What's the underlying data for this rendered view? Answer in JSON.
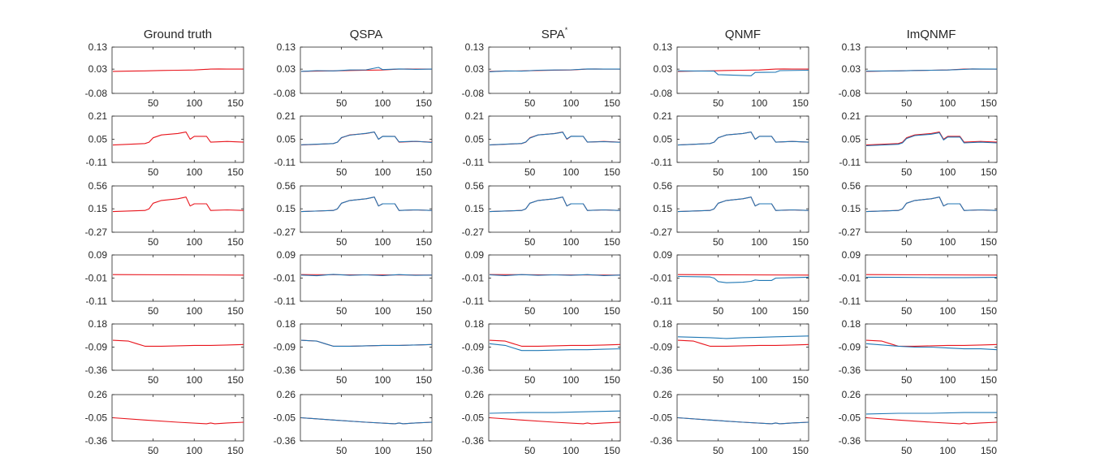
{
  "colors": {
    "truth": "#e8141c",
    "estimate": "#1f77b4"
  },
  "chart_data": {
    "type": "line",
    "title": "",
    "xlim": [
      0,
      160
    ],
    "xticks": [
      50,
      100,
      150
    ],
    "columns": [
      {
        "key": "gt",
        "title": "Ground truth",
        "sup": ""
      },
      {
        "key": "qspa",
        "title": "QSPA",
        "sup": ""
      },
      {
        "key": "spa",
        "title": "SPA",
        "sup": "*"
      },
      {
        "key": "qnmf",
        "title": "QNMF",
        "sup": ""
      },
      {
        "key": "imq",
        "title": "ImQNMF",
        "sup": ""
      }
    ],
    "rows": [
      {
        "ylim": [
          -0.08,
          0.13
        ],
        "yticks": [
          0.13,
          0.03,
          -0.08
        ],
        "ytick_labels": [
          "0.13",
          "0.03",
          "-0.08"
        ],
        "truth": {
          "x": [
            1,
            20,
            40,
            60,
            80,
            100,
            120,
            130,
            140,
            160
          ],
          "y": [
            0.02,
            0.021,
            0.022,
            0.024,
            0.025,
            0.026,
            0.03,
            0.031,
            0.03,
            0.03
          ]
        },
        "estimates": {
          "qspa": {
            "x": [
              1,
              20,
              40,
              60,
              80,
              95,
              100,
              120,
              140,
              160
            ],
            "y": [
              0.02,
              0.023,
              0.022,
              0.026,
              0.027,
              0.038,
              0.028,
              0.031,
              0.029,
              0.03
            ]
          },
          "spa": {
            "x": [
              1,
              20,
              40,
              60,
              80,
              100,
              120,
              140,
              160
            ],
            "y": [
              0.018,
              0.022,
              0.021,
              0.025,
              0.026,
              0.027,
              0.031,
              0.03,
              0.03
            ]
          },
          "qnmf": {
            "x": [
              1,
              45,
              50,
              90,
              95,
              120,
              125,
              160
            ],
            "y": [
              0.022,
              0.021,
              0.005,
              0.0,
              0.015,
              0.016,
              0.023,
              0.025
            ]
          },
          "imq": {
            "x": [
              1,
              40,
              60,
              80,
              100,
              120,
              130,
              160
            ],
            "y": [
              0.021,
              0.022,
              0.024,
              0.025,
              0.026,
              0.029,
              0.031,
              0.03
            ]
          }
        }
      },
      {
        "ylim": [
          -0.11,
          0.21
        ],
        "yticks": [
          0.21,
          0.05,
          -0.11
        ],
        "ytick_labels": [
          "0.21",
          "0.05",
          "-0.11"
        ],
        "truth": {
          "x": [
            1,
            40,
            45,
            50,
            60,
            80,
            90,
            95,
            100,
            115,
            120,
            140,
            160
          ],
          "y": [
            0.01,
            0.02,
            0.03,
            0.06,
            0.08,
            0.09,
            0.1,
            0.05,
            0.07,
            0.07,
            0.03,
            0.035,
            0.03
          ]
        },
        "estimates": {
          "qspa": {
            "x": [
              1,
              40,
              45,
              50,
              60,
              80,
              90,
              95,
              100,
              115,
              120,
              140,
              160
            ],
            "y": [
              0.012,
              0.02,
              0.03,
              0.062,
              0.078,
              0.091,
              0.1,
              0.05,
              0.07,
              0.069,
              0.032,
              0.036,
              0.028
            ]
          },
          "spa": {
            "x": [
              1,
              40,
              45,
              50,
              60,
              80,
              90,
              95,
              100,
              115,
              120,
              140,
              160
            ],
            "y": [
              0.011,
              0.021,
              0.031,
              0.058,
              0.08,
              0.089,
              0.099,
              0.052,
              0.071,
              0.07,
              0.031,
              0.033,
              0.029
            ]
          },
          "qnmf": {
            "x": [
              1,
              40,
              45,
              50,
              60,
              80,
              90,
              95,
              100,
              115,
              120,
              140,
              160
            ],
            "y": [
              0.01,
              0.02,
              0.03,
              0.06,
              0.08,
              0.09,
              0.1,
              0.05,
              0.07,
              0.07,
              0.03,
              0.035,
              0.03
            ]
          },
          "imq": {
            "x": [
              1,
              40,
              45,
              50,
              60,
              80,
              90,
              95,
              100,
              115,
              120,
              140,
              160
            ],
            "y": [
              0.005,
              0.015,
              0.025,
              0.055,
              0.075,
              0.085,
              0.095,
              0.045,
              0.065,
              0.065,
              0.025,
              0.03,
              0.025
            ]
          }
        }
      },
      {
        "ylim": [
          -0.27,
          0.56
        ],
        "yticks": [
          0.56,
          0.15,
          -0.27
        ],
        "ytick_labels": [
          "0.56",
          "0.15",
          "-0.27"
        ],
        "truth": {
          "x": [
            1,
            40,
            45,
            50,
            60,
            80,
            90,
            95,
            100,
            115,
            120,
            140,
            160
          ],
          "y": [
            0.1,
            0.12,
            0.15,
            0.25,
            0.3,
            0.33,
            0.36,
            0.2,
            0.24,
            0.24,
            0.12,
            0.13,
            0.12
          ]
        },
        "estimates": {
          "qspa": {
            "x": [
              1,
              40,
              45,
              50,
              60,
              80,
              90,
              95,
              100,
              115,
              120,
              140,
              160
            ],
            "y": [
              0.1,
              0.12,
              0.15,
              0.25,
              0.3,
              0.33,
              0.36,
              0.2,
              0.24,
              0.24,
              0.12,
              0.13,
              0.12
            ]
          },
          "spa": {
            "x": [
              1,
              40,
              45,
              50,
              60,
              80,
              90,
              95,
              100,
              115,
              120,
              140,
              160
            ],
            "y": [
              0.1,
              0.12,
              0.15,
              0.25,
              0.3,
              0.33,
              0.36,
              0.2,
              0.24,
              0.24,
              0.12,
              0.13,
              0.12
            ]
          },
          "qnmf": {
            "x": [
              1,
              40,
              45,
              50,
              60,
              80,
              90,
              95,
              100,
              115,
              120,
              140,
              160
            ],
            "y": [
              0.1,
              0.12,
              0.15,
              0.25,
              0.3,
              0.33,
              0.36,
              0.2,
              0.24,
              0.24,
              0.12,
              0.13,
              0.12
            ]
          },
          "imq": {
            "x": [
              1,
              40,
              45,
              50,
              60,
              80,
              90,
              95,
              100,
              115,
              120,
              140,
              160
            ],
            "y": [
              0.1,
              0.12,
              0.15,
              0.25,
              0.3,
              0.33,
              0.36,
              0.2,
              0.24,
              0.24,
              0.12,
              0.13,
              0.12
            ]
          }
        }
      },
      {
        "ylim": [
          -0.11,
          0.09
        ],
        "yticks": [
          0.09,
          -0.01,
          -0.11
        ],
        "ytick_labels": [
          "0.09",
          "-0.01",
          "-0.11"
        ],
        "truth": {
          "x": [
            1,
            80,
            160
          ],
          "y": [
            0.005,
            0.004,
            0.003
          ]
        },
        "estimates": {
          "qspa": {
            "x": [
              1,
              20,
              40,
              60,
              80,
              100,
              120,
              140,
              160
            ],
            "y": [
              0.003,
              0.0,
              0.006,
              0.002,
              0.004,
              0.001,
              0.005,
              0.002,
              0.003
            ]
          },
          "spa": {
            "x": [
              1,
              20,
              40,
              60,
              80,
              100,
              120,
              140,
              160
            ],
            "y": [
              0.004,
              0.001,
              0.005,
              0.002,
              0.004,
              0.002,
              0.005,
              0.001,
              0.003
            ]
          },
          "qnmf": {
            "x": [
              1,
              40,
              45,
              50,
              60,
              80,
              90,
              95,
              100,
              115,
              120,
              140,
              160
            ],
            "y": [
              -0.003,
              -0.005,
              -0.01,
              -0.025,
              -0.03,
              -0.028,
              -0.024,
              -0.018,
              -0.02,
              -0.02,
              -0.01,
              -0.008,
              -0.006
            ]
          },
          "imq": {
            "x": [
              1,
              40,
              80,
              120,
              160
            ],
            "y": [
              -0.006,
              -0.007,
              -0.008,
              -0.008,
              -0.007
            ]
          }
        }
      },
      {
        "ylim": [
          -0.36,
          0.18
        ],
        "yticks": [
          0.18,
          -0.09,
          -0.36
        ],
        "ytick_labels": [
          "0.18",
          "-0.09",
          "-0.36"
        ],
        "truth": {
          "x": [
            1,
            20,
            30,
            40,
            60,
            80,
            100,
            120,
            140,
            160
          ],
          "y": [
            -0.01,
            -0.02,
            -0.05,
            -0.08,
            -0.08,
            -0.075,
            -0.07,
            -0.07,
            -0.065,
            -0.06
          ]
        },
        "estimates": {
          "qspa": {
            "x": [
              1,
              20,
              30,
              40,
              60,
              80,
              100,
              120,
              140,
              160
            ],
            "y": [
              -0.01,
              -0.02,
              -0.05,
              -0.08,
              -0.08,
              -0.075,
              -0.07,
              -0.07,
              -0.065,
              -0.06
            ]
          },
          "spa": {
            "x": [
              1,
              20,
              30,
              40,
              60,
              80,
              100,
              120,
              140,
              160
            ],
            "y": [
              -0.05,
              -0.07,
              -0.1,
              -0.13,
              -0.13,
              -0.125,
              -0.12,
              -0.12,
              -0.115,
              -0.11
            ]
          },
          "qnmf": {
            "x": [
              1,
              40,
              60,
              80,
              100,
              120,
              160
            ],
            "y": [
              0.03,
              0.02,
              0.01,
              0.02,
              0.025,
              0.03,
              0.04
            ]
          },
          "imq": {
            "x": [
              1,
              40,
              60,
              80,
              100,
              120,
              140,
              160
            ],
            "y": [
              -0.05,
              -0.08,
              -0.09,
              -0.09,
              -0.1,
              -0.11,
              -0.11,
              -0.12
            ]
          }
        }
      },
      {
        "ylim": [
          -0.36,
          0.26
        ],
        "yticks": [
          0.26,
          -0.05,
          -0.36
        ],
        "ytick_labels": [
          "0.26",
          "-0.05",
          "-0.36"
        ],
        "truth": {
          "x": [
            1,
            40,
            80,
            115,
            120,
            125,
            140,
            160
          ],
          "y": [
            -0.05,
            -0.08,
            -0.11,
            -0.13,
            -0.12,
            -0.13,
            -0.12,
            -0.11
          ]
        },
        "estimates": {
          "qspa": {
            "x": [
              1,
              40,
              80,
              115,
              120,
              125,
              140,
              160
            ],
            "y": [
              -0.05,
              -0.08,
              -0.11,
              -0.13,
              -0.12,
              -0.13,
              -0.12,
              -0.11
            ]
          },
          "spa": {
            "x": [
              1,
              40,
              80,
              120,
              160
            ],
            "y": [
              0.01,
              0.02,
              0.02,
              0.03,
              0.04
            ]
          },
          "qnmf": {
            "x": [
              1,
              40,
              80,
              115,
              120,
              125,
              140,
              160
            ],
            "y": [
              -0.05,
              -0.08,
              -0.11,
              -0.13,
              -0.12,
              -0.13,
              -0.12,
              -0.11
            ]
          },
          "imq": {
            "x": [
              1,
              40,
              80,
              120,
              160
            ],
            "y": [
              0.0,
              0.01,
              0.01,
              0.02,
              0.02
            ]
          }
        }
      }
    ]
  }
}
